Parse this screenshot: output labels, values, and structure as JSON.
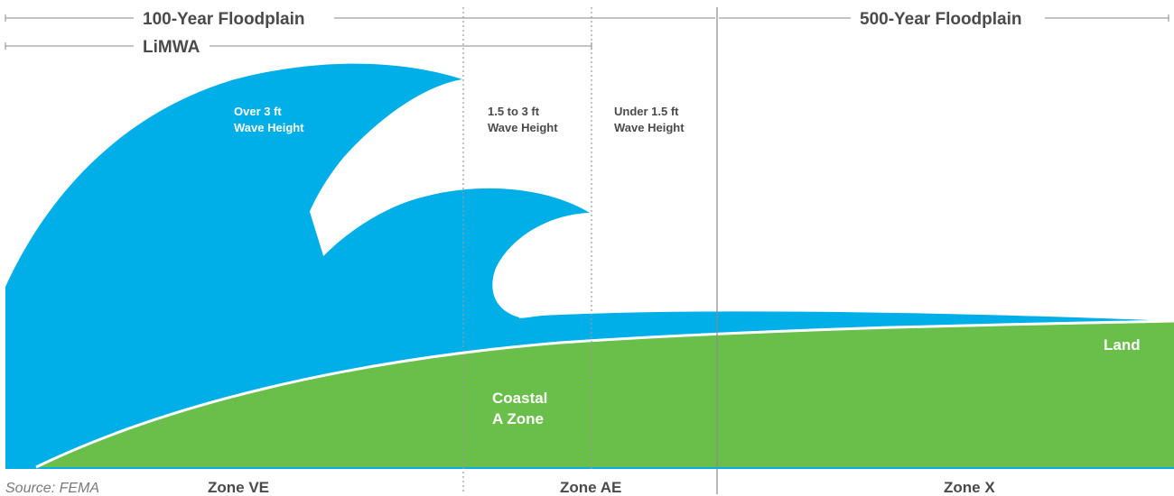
{
  "top_labels": {
    "floodplain_100": "100-Year Floodplain",
    "floodplain_500": "500-Year Floodplain",
    "limwa": "LiMWA"
  },
  "wave_labels": {
    "over_3ft": [
      "Over 3 ft",
      "Wave Height"
    ],
    "between": [
      "1.5 to 3 ft",
      "Wave Height"
    ],
    "under": [
      "Under 1.5 ft",
      "Wave Height"
    ]
  },
  "land_labels": {
    "land": "Land",
    "coastal_a": [
      "Coastal",
      "A Zone"
    ]
  },
  "zones": {
    "ve": "Zone VE",
    "ae": "Zone AE",
    "x": "Zone X"
  },
  "source": "Source: FEMA",
  "colors": {
    "water": "#00aee8",
    "land": "#6abf4b",
    "text": "#4a4a4a",
    "line": "#8a8a8a"
  }
}
